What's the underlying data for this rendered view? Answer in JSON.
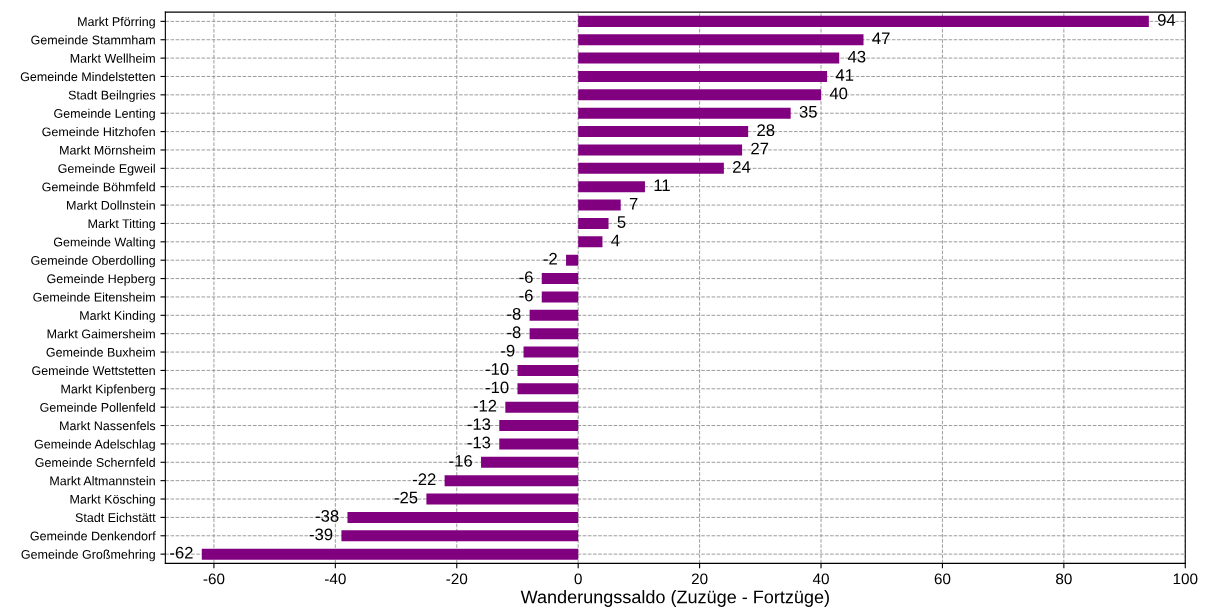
{
  "chart_data": {
    "type": "bar",
    "orientation": "horizontal",
    "xlabel": "Wanderungssaldo (Zuzüge - Fortzüge)",
    "categories": [
      "Markt Pförring",
      "Gemeinde Stammham",
      "Markt Wellheim",
      "Gemeinde Mindelstetten",
      "Stadt Beilngries",
      "Gemeinde Lenting",
      "Gemeinde Hitzhofen",
      "Markt Mörnsheim",
      "Gemeinde Egweil",
      "Gemeinde Böhmfeld",
      "Markt Dollnstein",
      "Markt Titting",
      "Gemeinde Walting",
      "Gemeinde Oberdolling",
      "Gemeinde Hepberg",
      "Gemeinde Eitensheim",
      "Markt Kinding",
      "Markt Gaimersheim",
      "Gemeinde Buxheim",
      "Gemeinde Wettstetten",
      "Markt Kipfenberg",
      "Gemeinde Pollenfeld",
      "Markt Nassenfels",
      "Gemeinde Adelschlag",
      "Gemeinde Schernfeld",
      "Markt Altmannstein",
      "Markt Kösching",
      "Stadt Eichstätt",
      "Gemeinde Denkendorf",
      "Gemeinde Großmehring"
    ],
    "values": [
      94,
      47,
      43,
      41,
      40,
      35,
      28,
      27,
      24,
      11,
      7,
      5,
      4,
      -2,
      -6,
      -6,
      -8,
      -8,
      -9,
      -10,
      -10,
      -12,
      -13,
      -13,
      -16,
      -22,
      -25,
      -38,
      -39,
      -62
    ],
    "color": "#800080",
    "data_labels": true,
    "xlim": [
      -68,
      100
    ],
    "xticks": [
      -60,
      -40,
      -20,
      0,
      20,
      40,
      60,
      80,
      100
    ],
    "grid": true
  }
}
